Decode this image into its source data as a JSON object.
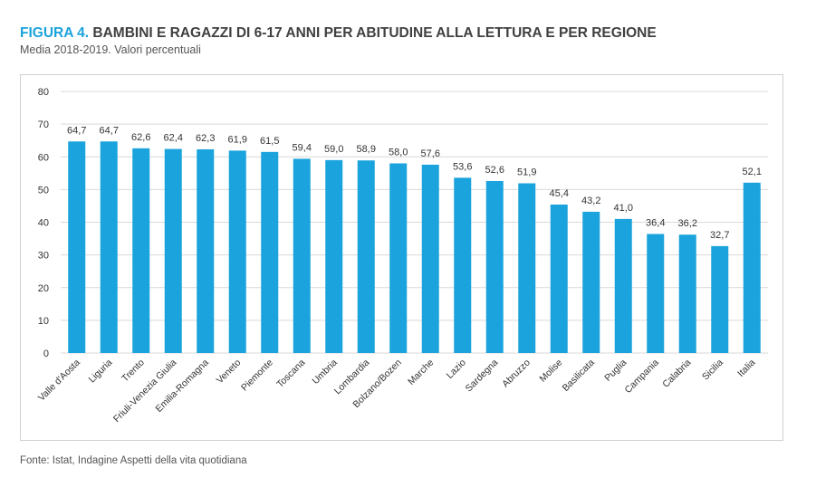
{
  "figure": {
    "label": "FIGURA 4.",
    "title": "BAMBINI E RAGAZZI DI 6-17 ANNI PER ABITUDINE ALLA LETTURA E PER REGIONE",
    "subtitle": "Media 2018-2019. Valori percentuali",
    "source": "Fonte: Istat, Indagine Aspetti della vita quotidiana"
  },
  "colors": {
    "bar": "#1aa3dc",
    "title_label": "#1aa3dc",
    "grid": "#d9d9d9"
  },
  "chart_data": {
    "type": "bar",
    "title": "BAMBINI E RAGAZZI DI 6-17 ANNI PER ABITUDINE ALLA LETTURA E PER REGIONE",
    "subtitle": "Media 2018-2019. Valori percentuali",
    "xlabel": "",
    "ylabel": "",
    "ylim": [
      0,
      80
    ],
    "yticks": [
      0,
      10,
      20,
      30,
      40,
      50,
      60,
      70,
      80
    ],
    "grid": true,
    "legend": "none",
    "categories": [
      "Valle d'Aosta",
      "Liguria",
      "Trento",
      "Friuli-Venezia Giulia",
      "Emilia-Romagna",
      "Veneto",
      "Piemonte",
      "Toscana",
      "Umbria",
      "Lombardia",
      "Bolzano/Bozen",
      "Marche",
      "Lazio",
      "Sardegna",
      "Abruzzo",
      "Molise",
      "Basilicata",
      "Puglia",
      "Campania",
      "Calabria",
      "Sicilia",
      "Italia"
    ],
    "values": [
      64.7,
      64.7,
      62.6,
      62.4,
      62.3,
      61.9,
      61.5,
      59.4,
      59.0,
      58.9,
      58.0,
      57.6,
      53.6,
      52.6,
      51.9,
      45.4,
      43.2,
      41.0,
      36.4,
      36.2,
      32.7,
      52.1
    ],
    "value_labels": [
      "64,7",
      "64,7",
      "62,6",
      "62,4",
      "62,3",
      "61,9",
      "61,5",
      "59,4",
      "59,0",
      "58,9",
      "58,0",
      "57,6",
      "53,6",
      "52,6",
      "51,9",
      "45,4",
      "43,2",
      "41,0",
      "36,4",
      "36,2",
      "32,7",
      "52,1"
    ]
  }
}
